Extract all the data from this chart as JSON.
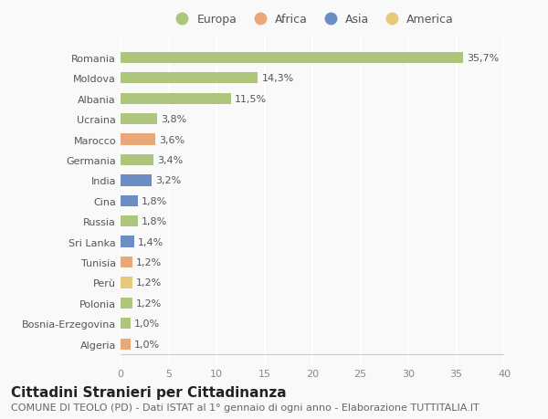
{
  "countries": [
    "Romania",
    "Moldova",
    "Albania",
    "Ucraina",
    "Marocco",
    "Germania",
    "India",
    "Cina",
    "Russia",
    "Sri Lanka",
    "Tunisia",
    "Perù",
    "Polonia",
    "Bosnia-Erzegovina",
    "Algeria"
  ],
  "values": [
    35.7,
    14.3,
    11.5,
    3.8,
    3.6,
    3.4,
    3.2,
    1.8,
    1.8,
    1.4,
    1.2,
    1.2,
    1.2,
    1.0,
    1.0
  ],
  "labels": [
    "35,7%",
    "14,3%",
    "11,5%",
    "3,8%",
    "3,6%",
    "3,4%",
    "3,2%",
    "1,8%",
    "1,8%",
    "1,4%",
    "1,2%",
    "1,2%",
    "1,2%",
    "1,0%",
    "1,0%"
  ],
  "continents": [
    "Europa",
    "Europa",
    "Europa",
    "Europa",
    "Africa",
    "Europa",
    "Asia",
    "Asia",
    "Europa",
    "Asia",
    "Africa",
    "America",
    "Europa",
    "Europa",
    "Africa"
  ],
  "continent_colors": {
    "Europa": "#aec57e",
    "Africa": "#e8a878",
    "Asia": "#6b8fc2",
    "America": "#e8c87a"
  },
  "legend_order": [
    "Europa",
    "Africa",
    "Asia",
    "America"
  ],
  "bar_height": 0.55,
  "xlim": [
    0,
    40
  ],
  "xticks": [
    0,
    5,
    10,
    15,
    20,
    25,
    30,
    35,
    40
  ],
  "title": "Cittadini Stranieri per Cittadinanza",
  "subtitle": "COMUNE DI TEOLO (PD) - Dati ISTAT al 1° gennaio di ogni anno - Elaborazione TUTTITALIA.IT",
  "background_color": "#f9f9f9",
  "grid_color": "#ffffff",
  "label_fontsize": 8,
  "tick_fontsize": 8,
  "title_fontsize": 11,
  "subtitle_fontsize": 8
}
